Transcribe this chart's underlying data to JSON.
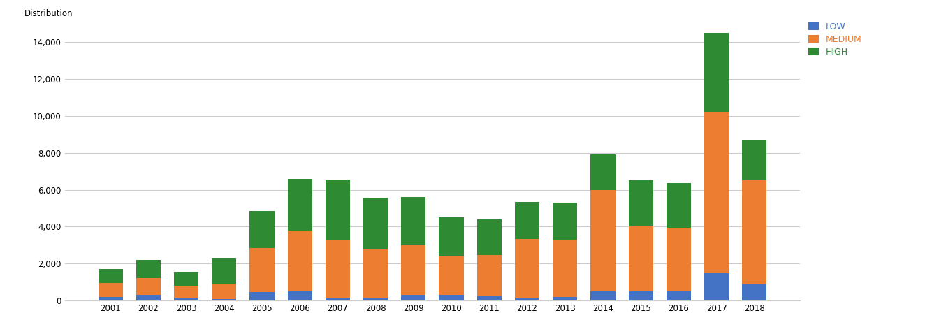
{
  "years": [
    2001,
    2002,
    2003,
    2004,
    2005,
    2006,
    2007,
    2008,
    2009,
    2010,
    2011,
    2012,
    2013,
    2014,
    2015,
    2016,
    2017,
    2018
  ],
  "low": [
    200,
    300,
    150,
    100,
    450,
    500,
    150,
    150,
    300,
    300,
    250,
    150,
    200,
    500,
    500,
    550,
    1500,
    900
  ],
  "medium": [
    750,
    900,
    650,
    800,
    2400,
    3300,
    3100,
    2600,
    2700,
    2100,
    2200,
    3200,
    3100,
    5500,
    3500,
    3400,
    8700,
    5600
  ],
  "high": [
    750,
    1000,
    750,
    1400,
    2000,
    2800,
    3300,
    2800,
    2600,
    2100,
    1950,
    2000,
    2000,
    1900,
    2500,
    2400,
    4300,
    2200
  ],
  "colors": {
    "LOW": "#4472c4",
    "MEDIUM": "#ed7d31",
    "HIGH": "#2e8b34"
  },
  "ylabel": "Distribution",
  "ylim": [
    0,
    15000
  ],
  "yticks": [
    0,
    2000,
    4000,
    6000,
    8000,
    10000,
    12000,
    14000
  ],
  "bar_width": 0.65,
  "bg_color": "#ffffff",
  "grid_color": "#cccccc",
  "legend_text_colors": [
    "#4472c4",
    "#ed7d31",
    "#2e8b34"
  ]
}
